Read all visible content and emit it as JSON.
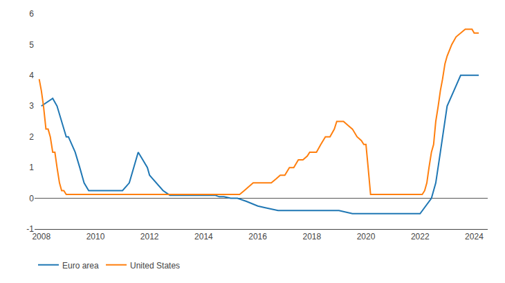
{
  "chart_data": {
    "type": "line",
    "series": [
      {
        "name": "Euro area",
        "x": [
          2008.0,
          2008.42,
          2008.58,
          2008.75,
          2008.92,
          2009.0,
          2009.25,
          2009.42,
          2009.58,
          2009.75,
          2010.0,
          2010.5,
          2011.0,
          2011.25,
          2011.42,
          2011.58,
          2011.75,
          2011.92,
          2012.0,
          2012.25,
          2012.5,
          2012.75,
          2013.0,
          2013.5,
          2014.0,
          2014.42,
          2014.58,
          2014.75,
          2015.0,
          2015.25,
          2015.58,
          2016.0,
          2016.25,
          2016.5,
          2016.75,
          2017.0,
          2017.5,
          2018.0,
          2018.5,
          2019.0,
          2019.5,
          2019.75,
          2020.0,
          2022.0,
          2022.42,
          2022.58,
          2022.75,
          2022.92,
          2023.0,
          2023.25,
          2023.5,
          2023.75,
          2024.0,
          2024.17
        ],
        "values": [
          3.0,
          3.25,
          3.0,
          2.5,
          2.0,
          2.0,
          1.5,
          1.0,
          0.5,
          0.25,
          0.25,
          0.25,
          0.25,
          0.5,
          1.0,
          1.5,
          1.25,
          1.0,
          0.75,
          0.5,
          0.25,
          0.1,
          0.1,
          0.1,
          0.1,
          0.1,
          0.05,
          0.05,
          0.0,
          0.0,
          -0.1,
          -0.25,
          -0.3,
          -0.35,
          -0.4,
          -0.4,
          -0.4,
          -0.4,
          -0.4,
          -0.4,
          -0.5,
          -0.5,
          -0.5,
          -0.5,
          0.0,
          0.5,
          1.5,
          2.5,
          3.0,
          3.5,
          4.0,
          4.0,
          4.0,
          4.0
        ]
      },
      {
        "name": "United States",
        "x": [
          2007.92,
          2008.0,
          2008.08,
          2008.17,
          2008.25,
          2008.33,
          2008.42,
          2008.5,
          2008.58,
          2008.67,
          2008.75,
          2008.83,
          2008.92,
          2009.0,
          2009.25,
          2009.5,
          2010.0,
          2010.5,
          2011.0,
          2011.5,
          2012.0,
          2012.5,
          2013.0,
          2013.5,
          2014.0,
          2014.5,
          2015.0,
          2015.17,
          2015.33,
          2015.5,
          2015.67,
          2015.83,
          2015.92,
          2016.0,
          2016.17,
          2016.33,
          2016.5,
          2016.67,
          2016.83,
          2016.92,
          2017.0,
          2017.17,
          2017.33,
          2017.5,
          2017.67,
          2017.83,
          2017.92,
          2018.0,
          2018.17,
          2018.33,
          2018.5,
          2018.67,
          2018.83,
          2018.92,
          2019.0,
          2019.17,
          2019.33,
          2019.5,
          2019.67,
          2019.83,
          2019.92,
          2020.0,
          2020.08,
          2020.17,
          2020.25,
          2020.5,
          2021.0,
          2021.5,
          2022.0,
          2022.08,
          2022.17,
          2022.25,
          2022.33,
          2022.42,
          2022.5,
          2022.58,
          2022.67,
          2022.75,
          2022.83,
          2022.92,
          2023.0,
          2023.17,
          2023.33,
          2023.5,
          2023.67,
          2023.83,
          2023.92,
          2024.0,
          2024.17
        ],
        "values": [
          3.875,
          3.5,
          3.0,
          2.25,
          2.25,
          2.0,
          1.5,
          1.5,
          1.0,
          0.5,
          0.25,
          0.25,
          0.125,
          0.125,
          0.125,
          0.125,
          0.125,
          0.125,
          0.125,
          0.125,
          0.125,
          0.125,
          0.125,
          0.125,
          0.125,
          0.125,
          0.125,
          0.125,
          0.125,
          0.25,
          0.375,
          0.5,
          0.5,
          0.5,
          0.5,
          0.5,
          0.5,
          0.625,
          0.75,
          0.75,
          0.75,
          1.0,
          1.0,
          1.25,
          1.25,
          1.375,
          1.5,
          1.5,
          1.5,
          1.75,
          2.0,
          2.0,
          2.25,
          2.5,
          2.5,
          2.5,
          2.375,
          2.25,
          2.0,
          1.875,
          1.75,
          1.75,
          1.0,
          0.125,
          0.125,
          0.125,
          0.125,
          0.125,
          0.125,
          0.125,
          0.25,
          0.5,
          1.0,
          1.5,
          1.75,
          2.5,
          3.0,
          3.5,
          3.875,
          4.375,
          4.625,
          5.0,
          5.25,
          5.375,
          5.5,
          5.5,
          5.5,
          5.375,
          5.375
        ]
      }
    ],
    "xlim": [
      2007.75,
      2024.5
    ],
    "xticks": [
      2008,
      2010,
      2012,
      2014,
      2016,
      2018,
      2020,
      2022,
      2024
    ],
    "ylim": [
      -1,
      6
    ],
    "yticks": [
      -1,
      0,
      1,
      2,
      3,
      4,
      5,
      6
    ],
    "grid": false,
    "legend": "bottom"
  }
}
